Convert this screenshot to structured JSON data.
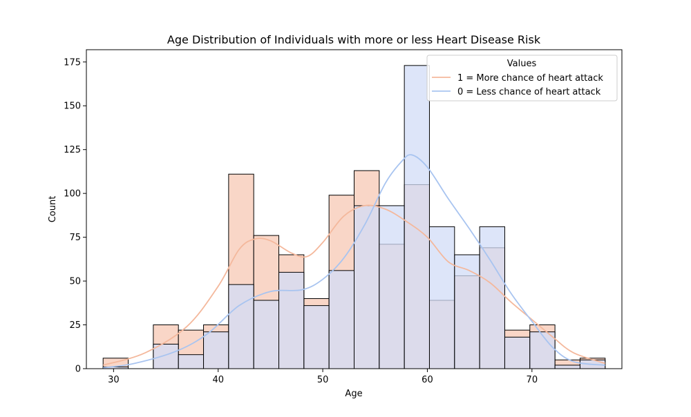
{
  "chart_data": {
    "type": "histogram",
    "title": "Age Distribution of Individuals with more or less Heart Disease Risk",
    "xlabel": "Age",
    "ylabel": "Count",
    "xlim": [
      27.4,
      78.6
    ],
    "ylim": [
      0,
      182
    ],
    "xticks": [
      30,
      40,
      50,
      60,
      70
    ],
    "yticks": [
      0,
      25,
      50,
      75,
      100,
      125,
      150,
      175
    ],
    "bin_edges": [
      29,
      31.4,
      33.8,
      36.2,
      38.6,
      41,
      43.4,
      45.8,
      48.2,
      50.6,
      53,
      55.4,
      57.8,
      60.2,
      62.6,
      65,
      67.4,
      69.8,
      72.2,
      74.6,
      77
    ],
    "legend": {
      "title": "Values",
      "position": "top-right"
    },
    "series": [
      {
        "name": "1 = More chance of heart attack",
        "color": "#f4b89c",
        "bar_fill": "#f9d6c7",
        "counts": [
          6,
          0,
          25,
          22,
          25,
          111,
          76,
          65,
          40,
          99,
          113,
          71,
          105,
          39,
          53,
          69,
          22,
          25,
          5,
          6
        ],
        "kde": [
          [
            29,
            2
          ],
          [
            33,
            9
          ],
          [
            37,
            24
          ],
          [
            40,
            47
          ],
          [
            42,
            68
          ],
          [
            43.5,
            74
          ],
          [
            45,
            73
          ],
          [
            47,
            66
          ],
          [
            48.5,
            64
          ],
          [
            50,
            72
          ],
          [
            52,
            87
          ],
          [
            54,
            93
          ],
          [
            56,
            91
          ],
          [
            58,
            84
          ],
          [
            60,
            75
          ],
          [
            62,
            61
          ],
          [
            64,
            56
          ],
          [
            66,
            49
          ],
          [
            68,
            38
          ],
          [
            70,
            28
          ],
          [
            72,
            18
          ],
          [
            74,
            9
          ],
          [
            77,
            3
          ]
        ]
      },
      {
        "name": "0 = Less chance of heart attack",
        "color": "#a8c4f0",
        "bar_fill": "#d1dcf7",
        "counts": [
          1,
          0,
          14,
          8,
          21,
          48,
          39,
          55,
          36,
          56,
          93,
          93,
          173,
          81,
          65,
          81,
          18,
          21,
          2,
          5
        ],
        "kde": [
          [
            29,
            0.5
          ],
          [
            32,
            3
          ],
          [
            36,
            10
          ],
          [
            39,
            20
          ],
          [
            42,
            36
          ],
          [
            45,
            44
          ],
          [
            48,
            45
          ],
          [
            50,
            51
          ],
          [
            52,
            63
          ],
          [
            54,
            82
          ],
          [
            56,
            106
          ],
          [
            57.5,
            118
          ],
          [
            58.5,
            122
          ],
          [
            60,
            115
          ],
          [
            62,
            97
          ],
          [
            64,
            80
          ],
          [
            66,
            62
          ],
          [
            68,
            43
          ],
          [
            70,
            27
          ],
          [
            72,
            12
          ],
          [
            74,
            4
          ],
          [
            77,
            2
          ]
        ]
      }
    ]
  }
}
